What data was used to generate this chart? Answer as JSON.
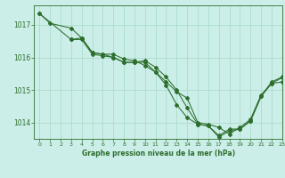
{
  "title": "Graphe pression niveau de la mer (hPa)",
  "bg_color": "#cceee8",
  "grid_color": "#aaddcc",
  "line_color": "#2d6e2d",
  "xlim": [
    -0.5,
    23
  ],
  "ylim": [
    1013.5,
    1017.6
  ],
  "yticks": [
    1014,
    1015,
    1016,
    1017
  ],
  "xticks": [
    0,
    1,
    2,
    3,
    4,
    5,
    6,
    7,
    8,
    9,
    10,
    11,
    12,
    13,
    14,
    15,
    16,
    17,
    18,
    19,
    20,
    21,
    22,
    23
  ],
  "line1_x": [
    0,
    1,
    3,
    4,
    5,
    6,
    7,
    8,
    9,
    10,
    11,
    12,
    13,
    14,
    15,
    16,
    17,
    18,
    19,
    20,
    21,
    22,
    23
  ],
  "line1_y": [
    1017.35,
    1017.05,
    1016.9,
    1016.6,
    1016.15,
    1016.1,
    1016.1,
    1015.95,
    1015.9,
    1015.75,
    1015.55,
    1015.25,
    1014.95,
    1014.75,
    1014.0,
    1013.95,
    1013.85,
    1013.65,
    1013.85,
    1014.1,
    1014.85,
    1015.2,
    1015.25
  ],
  "line2_x": [
    0,
    3,
    4,
    5,
    6,
    7,
    8,
    9,
    10,
    11,
    12,
    13,
    14,
    15,
    16,
    17,
    18,
    19,
    20,
    21,
    22,
    23
  ],
  "line2_y": [
    1017.35,
    1016.55,
    1016.55,
    1016.1,
    1016.05,
    1016.0,
    1015.85,
    1015.85,
    1015.9,
    1015.7,
    1015.4,
    1015.0,
    1014.45,
    1013.95,
    1013.9,
    1013.6,
    1013.8,
    1013.8,
    1014.05,
    1014.8,
    1015.2,
    1015.38
  ],
  "line3_x": [
    3,
    4,
    5,
    6,
    7,
    8,
    9,
    10,
    11,
    12,
    13,
    14,
    15,
    16,
    17,
    18,
    19,
    20,
    21,
    22,
    23
  ],
  "line3_y": [
    1016.55,
    1016.6,
    1016.15,
    1016.1,
    1016.0,
    1015.85,
    1015.85,
    1015.85,
    1015.55,
    1015.15,
    1014.55,
    1014.15,
    1013.95,
    1013.9,
    1013.55,
    1013.75,
    1013.8,
    1014.05,
    1014.8,
    1015.25,
    1015.4
  ]
}
